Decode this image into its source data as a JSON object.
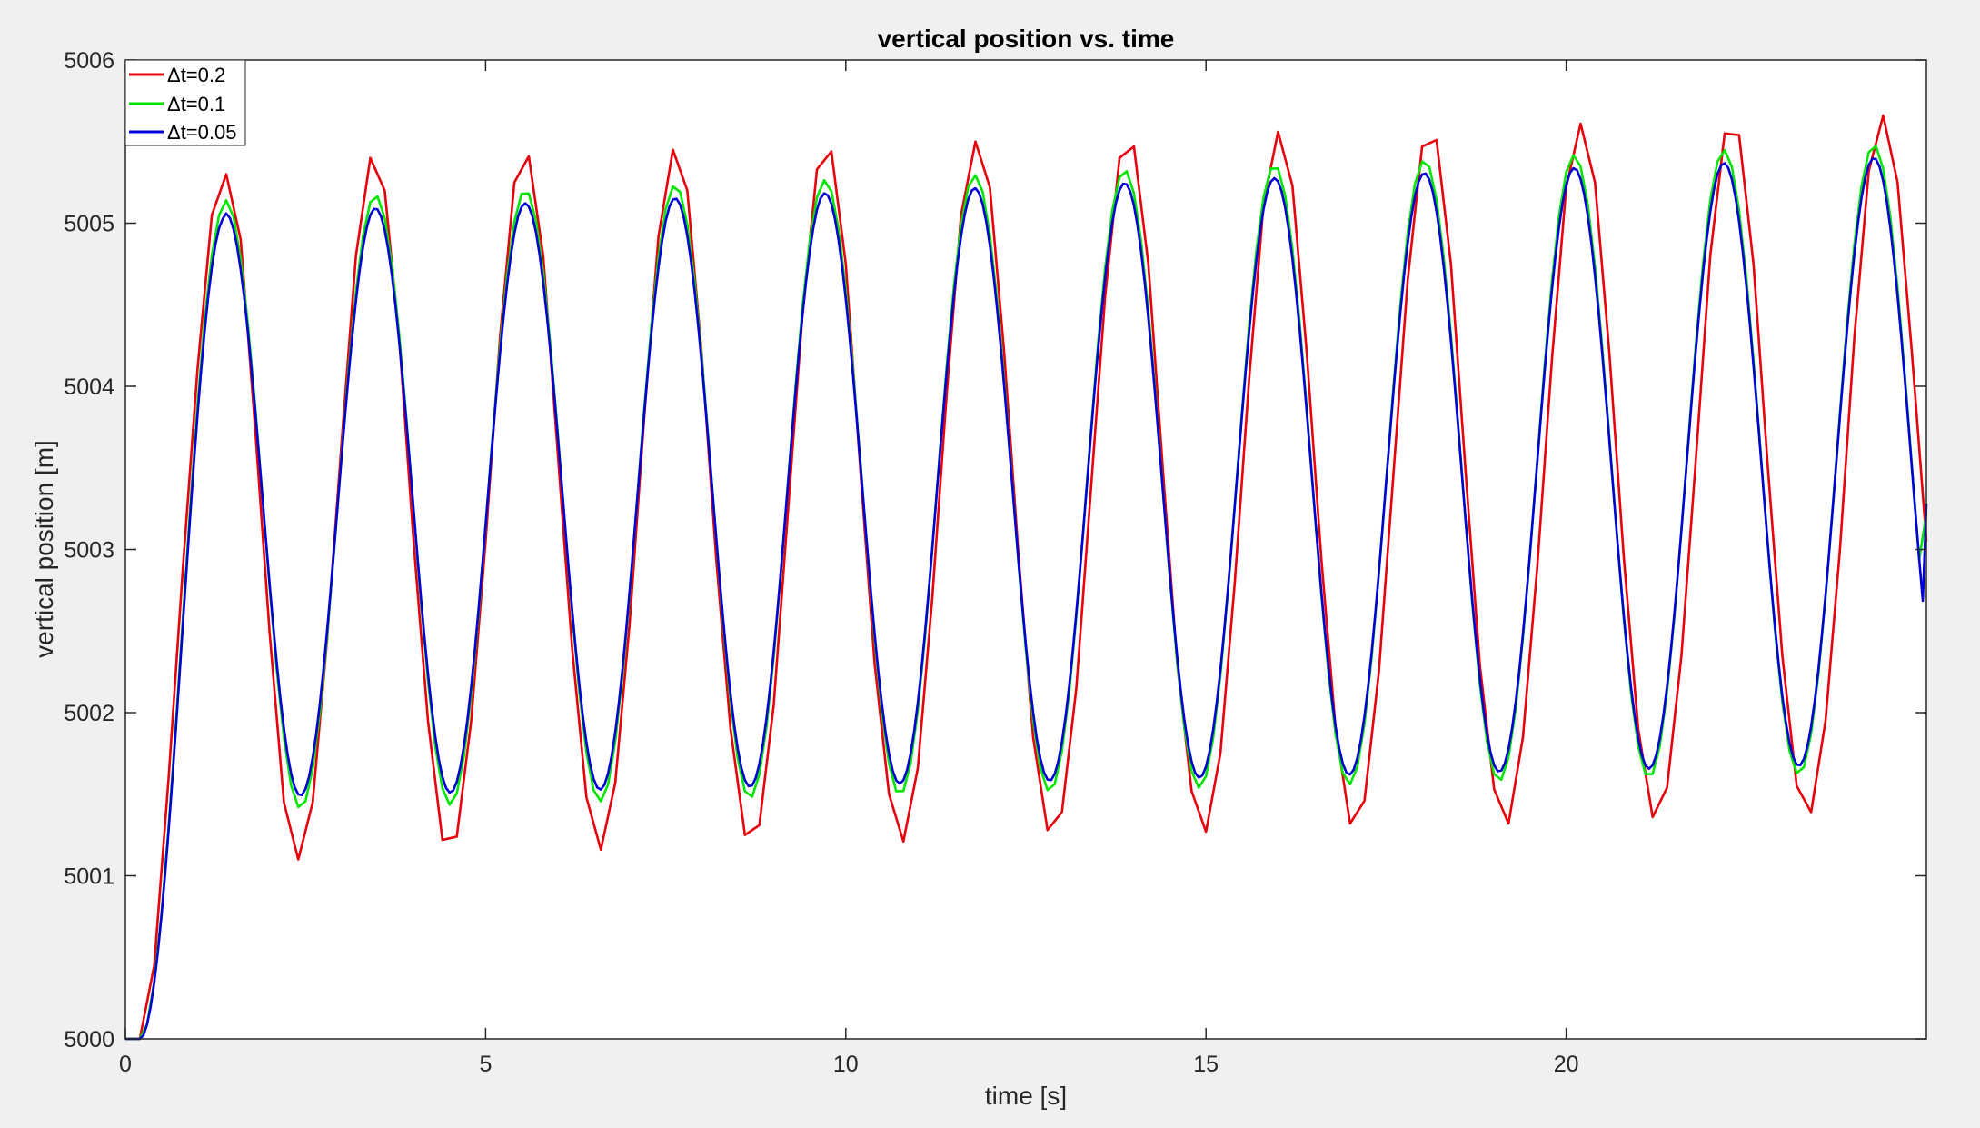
{
  "chart_data": {
    "type": "line",
    "title": "vertical position vs. time",
    "xlabel": "time [s]",
    "ylabel": "vertical position [m]",
    "xlim": [
      0,
      25
    ],
    "ylim": [
      5000,
      5006
    ],
    "xticks": [
      0,
      5,
      10,
      15,
      20
    ],
    "yticks": [
      5000,
      5001,
      5002,
      5003,
      5004,
      5005,
      5006
    ],
    "grid": false,
    "legend_position": "top-left",
    "series": [
      {
        "name": "Δt=0.2",
        "color": "#e8000b",
        "dt": 0.2,
        "points": [
          [
            0,
            5000
          ],
          [
            0.2,
            5000
          ],
          [
            0.4,
            5000.45
          ],
          [
            0.6,
            5001.6
          ],
          [
            0.8,
            5002.9
          ],
          [
            1.0,
            5004.1
          ],
          [
            1.2,
            5005.05
          ],
          [
            1.4,
            5005.3
          ],
          [
            1.6,
            5004.9
          ],
          [
            1.8,
            5003.75
          ],
          [
            2.0,
            5002.5
          ],
          [
            2.2,
            5001.45
          ],
          [
            2.4,
            5001.1
          ],
          [
            2.6,
            5001.45
          ],
          [
            2.8,
            5002.45
          ],
          [
            3.0,
            5003.65
          ],
          [
            3.2,
            5004.8
          ],
          [
            3.4,
            5005.4
          ],
          [
            3.6,
            5005.2
          ],
          [
            3.8,
            5004.3
          ],
          [
            4.0,
            5003.05
          ],
          [
            4.2,
            5001.95
          ],
          [
            4.4,
            5001.22
          ],
          [
            4.6,
            5001.24
          ],
          [
            4.8,
            5001.95
          ],
          [
            5.0,
            5003.05
          ],
          [
            5.2,
            5004.3
          ],
          [
            5.4,
            5005.25
          ],
          [
            5.6,
            5005.41
          ],
          [
            5.8,
            5004.8
          ],
          [
            6.0,
            5003.6
          ],
          [
            6.2,
            5002.4
          ],
          [
            6.4,
            5001.48
          ],
          [
            6.6,
            5001.16
          ],
          [
            6.8,
            5001.57
          ],
          [
            7.0,
            5002.55
          ],
          [
            7.2,
            5003.8
          ],
          [
            7.4,
            5004.92
          ],
          [
            7.6,
            5005.45
          ],
          [
            7.8,
            5005.2
          ],
          [
            8.0,
            5004.2
          ],
          [
            8.2,
            5002.95
          ],
          [
            8.4,
            5001.9
          ],
          [
            8.6,
            5001.25
          ],
          [
            8.8,
            5001.31
          ],
          [
            9.0,
            5002.05
          ],
          [
            9.2,
            5003.25
          ],
          [
            9.4,
            5004.45
          ],
          [
            9.6,
            5005.33
          ],
          [
            9.8,
            5005.44
          ],
          [
            10.0,
            5004.75
          ],
          [
            10.2,
            5003.5
          ],
          [
            10.4,
            5002.3
          ],
          [
            10.6,
            5001.5
          ],
          [
            10.8,
            5001.21
          ],
          [
            11.0,
            5001.66
          ],
          [
            11.2,
            5002.7
          ],
          [
            11.4,
            5003.95
          ],
          [
            11.6,
            5005.05
          ],
          [
            11.8,
            5005.5
          ],
          [
            12.0,
            5005.22
          ],
          [
            12.2,
            5004.2
          ],
          [
            12.4,
            5002.95
          ],
          [
            12.6,
            5001.85
          ],
          [
            12.8,
            5001.28
          ],
          [
            13.0,
            5001.39
          ],
          [
            13.2,
            5002.15
          ],
          [
            13.4,
            5003.35
          ],
          [
            13.6,
            5004.55
          ],
          [
            13.8,
            5005.4
          ],
          [
            14.0,
            5005.47
          ],
          [
            14.2,
            5004.75
          ],
          [
            14.4,
            5003.5
          ],
          [
            14.6,
            5002.3
          ],
          [
            14.8,
            5001.52
          ],
          [
            15.0,
            5001.27
          ],
          [
            15.2,
            5001.75
          ],
          [
            15.4,
            5002.8
          ],
          [
            15.6,
            5004.05
          ],
          [
            15.8,
            5005.12
          ],
          [
            16.0,
            5005.56
          ],
          [
            16.2,
            5005.23
          ],
          [
            16.4,
            5004.2
          ],
          [
            16.6,
            5002.95
          ],
          [
            16.8,
            5001.9
          ],
          [
            17.0,
            5001.32
          ],
          [
            17.2,
            5001.46
          ],
          [
            17.4,
            5002.25
          ],
          [
            17.6,
            5003.45
          ],
          [
            17.8,
            5004.65
          ],
          [
            18.0,
            5005.47
          ],
          [
            18.2,
            5005.51
          ],
          [
            18.4,
            5004.75
          ],
          [
            18.6,
            5003.5
          ],
          [
            18.8,
            5002.3
          ],
          [
            19.0,
            5001.53
          ],
          [
            19.2,
            5001.32
          ],
          [
            19.4,
            5001.85
          ],
          [
            19.6,
            5002.9
          ],
          [
            19.8,
            5004.15
          ],
          [
            20.0,
            5005.22
          ],
          [
            20.2,
            5005.61
          ],
          [
            20.4,
            5005.25
          ],
          [
            20.6,
            5004.2
          ],
          [
            20.8,
            5002.95
          ],
          [
            21.0,
            5001.9
          ],
          [
            21.2,
            5001.36
          ],
          [
            21.4,
            5001.54
          ],
          [
            21.6,
            5002.35
          ],
          [
            21.8,
            5003.55
          ],
          [
            22.0,
            5004.8
          ],
          [
            22.2,
            5005.55
          ],
          [
            22.4,
            5005.54
          ],
          [
            22.6,
            5004.75
          ],
          [
            22.8,
            5003.5
          ],
          [
            23.0,
            5002.35
          ],
          [
            23.2,
            5001.55
          ],
          [
            23.4,
            5001.39
          ],
          [
            23.6,
            5001.95
          ],
          [
            23.8,
            5003.0
          ],
          [
            24.0,
            5004.3
          ],
          [
            24.2,
            5005.32
          ],
          [
            24.4,
            5005.66
          ],
          [
            24.6,
            5005.25
          ],
          [
            24.8,
            5004.2
          ],
          [
            25.0,
            5003.05
          ]
        ]
      },
      {
        "name": "Δt=0.1",
        "color": "#00e600",
        "dt": 0.1,
        "period": 2.08,
        "start": 5000,
        "rise_to": 5005.12,
        "peak_start": 5005.12,
        "peak_end": 5005.49,
        "trough_start": 5001.39,
        "trough_end": 5001.64,
        "end_value": 5003.22
      },
      {
        "name": "Δt=0.05",
        "color": "#0000d6",
        "dt": 0.05,
        "period": 2.08,
        "start": 5000,
        "rise_to": 5005.04,
        "peak_start": 5005.04,
        "peak_end": 5005.41,
        "trough_start": 5001.47,
        "trough_end": 5001.69,
        "end_value": 5003.28
      }
    ]
  }
}
